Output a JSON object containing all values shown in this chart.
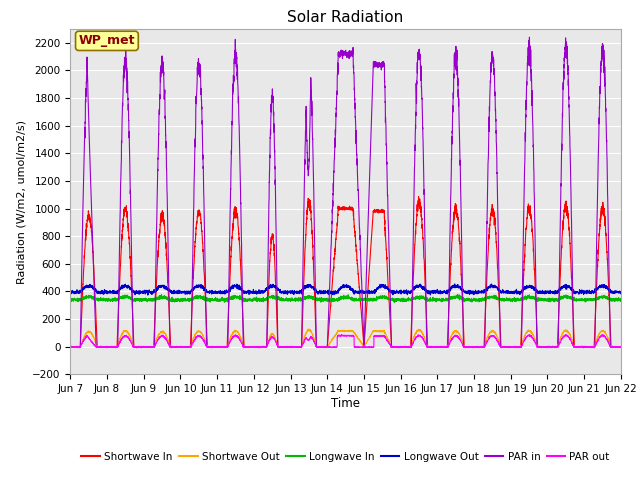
{
  "title": "Solar Radiation",
  "ylabel": "Radiation (W/m2, umol/m2/s)",
  "xlabel": "Time",
  "ylim": [
    -200,
    2300
  ],
  "yticks": [
    -200,
    0,
    200,
    400,
    600,
    800,
    1000,
    1200,
    1400,
    1600,
    1800,
    2000,
    2200
  ],
  "x_labels": [
    "Jun 7",
    "Jun 8",
    "Jun 9",
    "Jun 10",
    "Jun 11",
    "Jun 12",
    "Jun 13",
    "Jun 14",
    "Jun 15",
    "Jun 16",
    "Jun 17",
    "Jun 18",
    "Jun 19",
    "Jun 20",
    "Jun 21",
    "Jun 22"
  ],
  "annotation_text": "WP_met",
  "annotation_color": "#8B0000",
  "annotation_bg": "#FFFF99",
  "colors": {
    "shortwave_in": "#FF0000",
    "shortwave_out": "#FFA500",
    "longwave_in": "#00BB00",
    "longwave_out": "#0000CC",
    "par_in": "#9900CC",
    "par_out": "#FF00FF"
  },
  "legend_labels": [
    "Shortwave In",
    "Shortwave Out",
    "Longwave In",
    "Longwave Out",
    "PAR in",
    "PAR out"
  ],
  "background_color": "#E8E8E8",
  "grid_color": "#FFFFFF",
  "fig_bg": "#FFFFFF"
}
